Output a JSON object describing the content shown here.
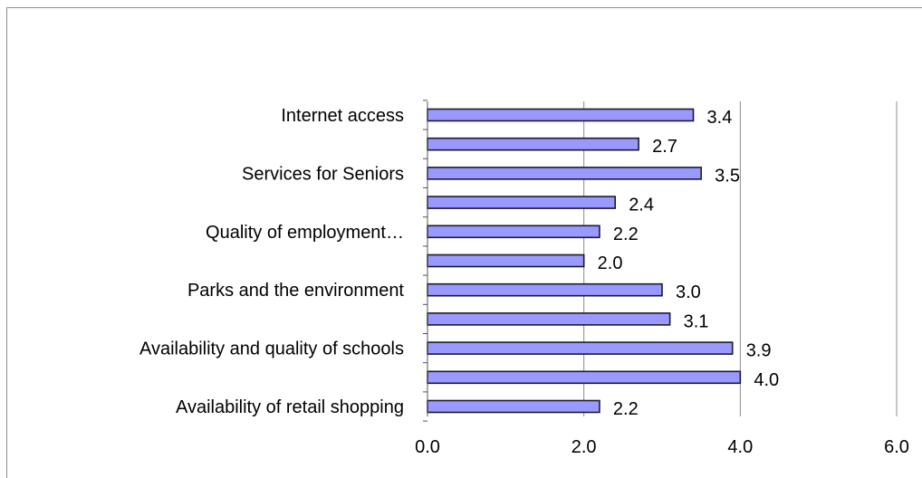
{
  "chart_data": {
    "type": "bar",
    "orientation": "horizontal",
    "categories": [
      "Internet access",
      "",
      "Services for Seniors",
      "",
      "Quality of employment…",
      "",
      "Parks and the environment",
      "",
      "Availability and quality of schools",
      "",
      "Availability of retail shopping"
    ],
    "values": [
      3.4,
      2.7,
      3.5,
      2.4,
      2.2,
      2.0,
      3.0,
      3.1,
      3.9,
      4.0,
      2.2
    ],
    "value_labels": [
      "3.4",
      "2.7",
      "3.5",
      "2.4",
      "2.2",
      "2.0",
      "3.0",
      "3.1",
      "3.9",
      "4.0",
      "2.2"
    ],
    "xlim": [
      0,
      6
    ],
    "xticks": [
      "0.0",
      "2.0",
      "4.0",
      "6.0"
    ],
    "xtick_values": [
      0,
      2,
      4,
      6
    ],
    "grid": true,
    "bar_color": "#9999ff",
    "bar_edge_color": "#1a1a33",
    "grid_color": "#8c8c8c"
  }
}
